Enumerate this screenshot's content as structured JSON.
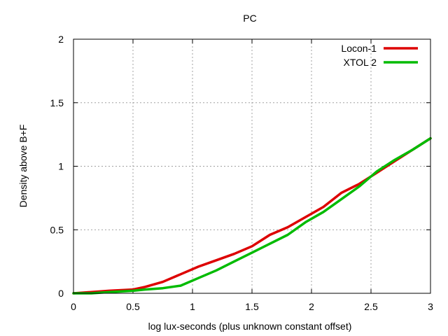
{
  "chart_data": {
    "type": "line",
    "title": "PC",
    "xlabel": "log lux-seconds (plus unknown constant offset)",
    "ylabel": "Density above B+F",
    "xlim": [
      0,
      3
    ],
    "ylim": [
      0,
      2
    ],
    "xticks": [
      "0",
      "0.5",
      "1",
      "1.5",
      "2",
      "2.5",
      "3"
    ],
    "yticks": [
      "0",
      "0.5",
      "1",
      "1.5",
      "2"
    ],
    "grid": true,
    "legend_position": "top-right",
    "series": [
      {
        "name": "Locon-1",
        "color": "#dd0000",
        "x": [
          0,
          0.15,
          0.3,
          0.5,
          0.6,
          0.75,
          0.9,
          1.05,
          1.2,
          1.35,
          1.5,
          1.65,
          1.8,
          1.95,
          2.1,
          2.25,
          2.4,
          2.55,
          2.7,
          2.85,
          3.0
        ],
        "y": [
          0,
          0.01,
          0.02,
          0.03,
          0.05,
          0.09,
          0.15,
          0.21,
          0.26,
          0.31,
          0.37,
          0.46,
          0.52,
          0.6,
          0.68,
          0.79,
          0.86,
          0.95,
          1.04,
          1.13,
          1.22
        ]
      },
      {
        "name": "XTOL 2",
        "color": "#00bb00",
        "x": [
          0,
          0.15,
          0.3,
          0.5,
          0.6,
          0.75,
          0.9,
          1.05,
          1.2,
          1.35,
          1.5,
          1.65,
          1.8,
          1.95,
          2.1,
          2.25,
          2.4,
          2.55,
          2.7,
          2.85,
          3.0
        ],
        "y": [
          0,
          0.0,
          0.01,
          0.02,
          0.03,
          0.04,
          0.06,
          0.12,
          0.18,
          0.25,
          0.32,
          0.39,
          0.46,
          0.56,
          0.64,
          0.74,
          0.84,
          0.96,
          1.05,
          1.13,
          1.22
        ]
      }
    ]
  }
}
